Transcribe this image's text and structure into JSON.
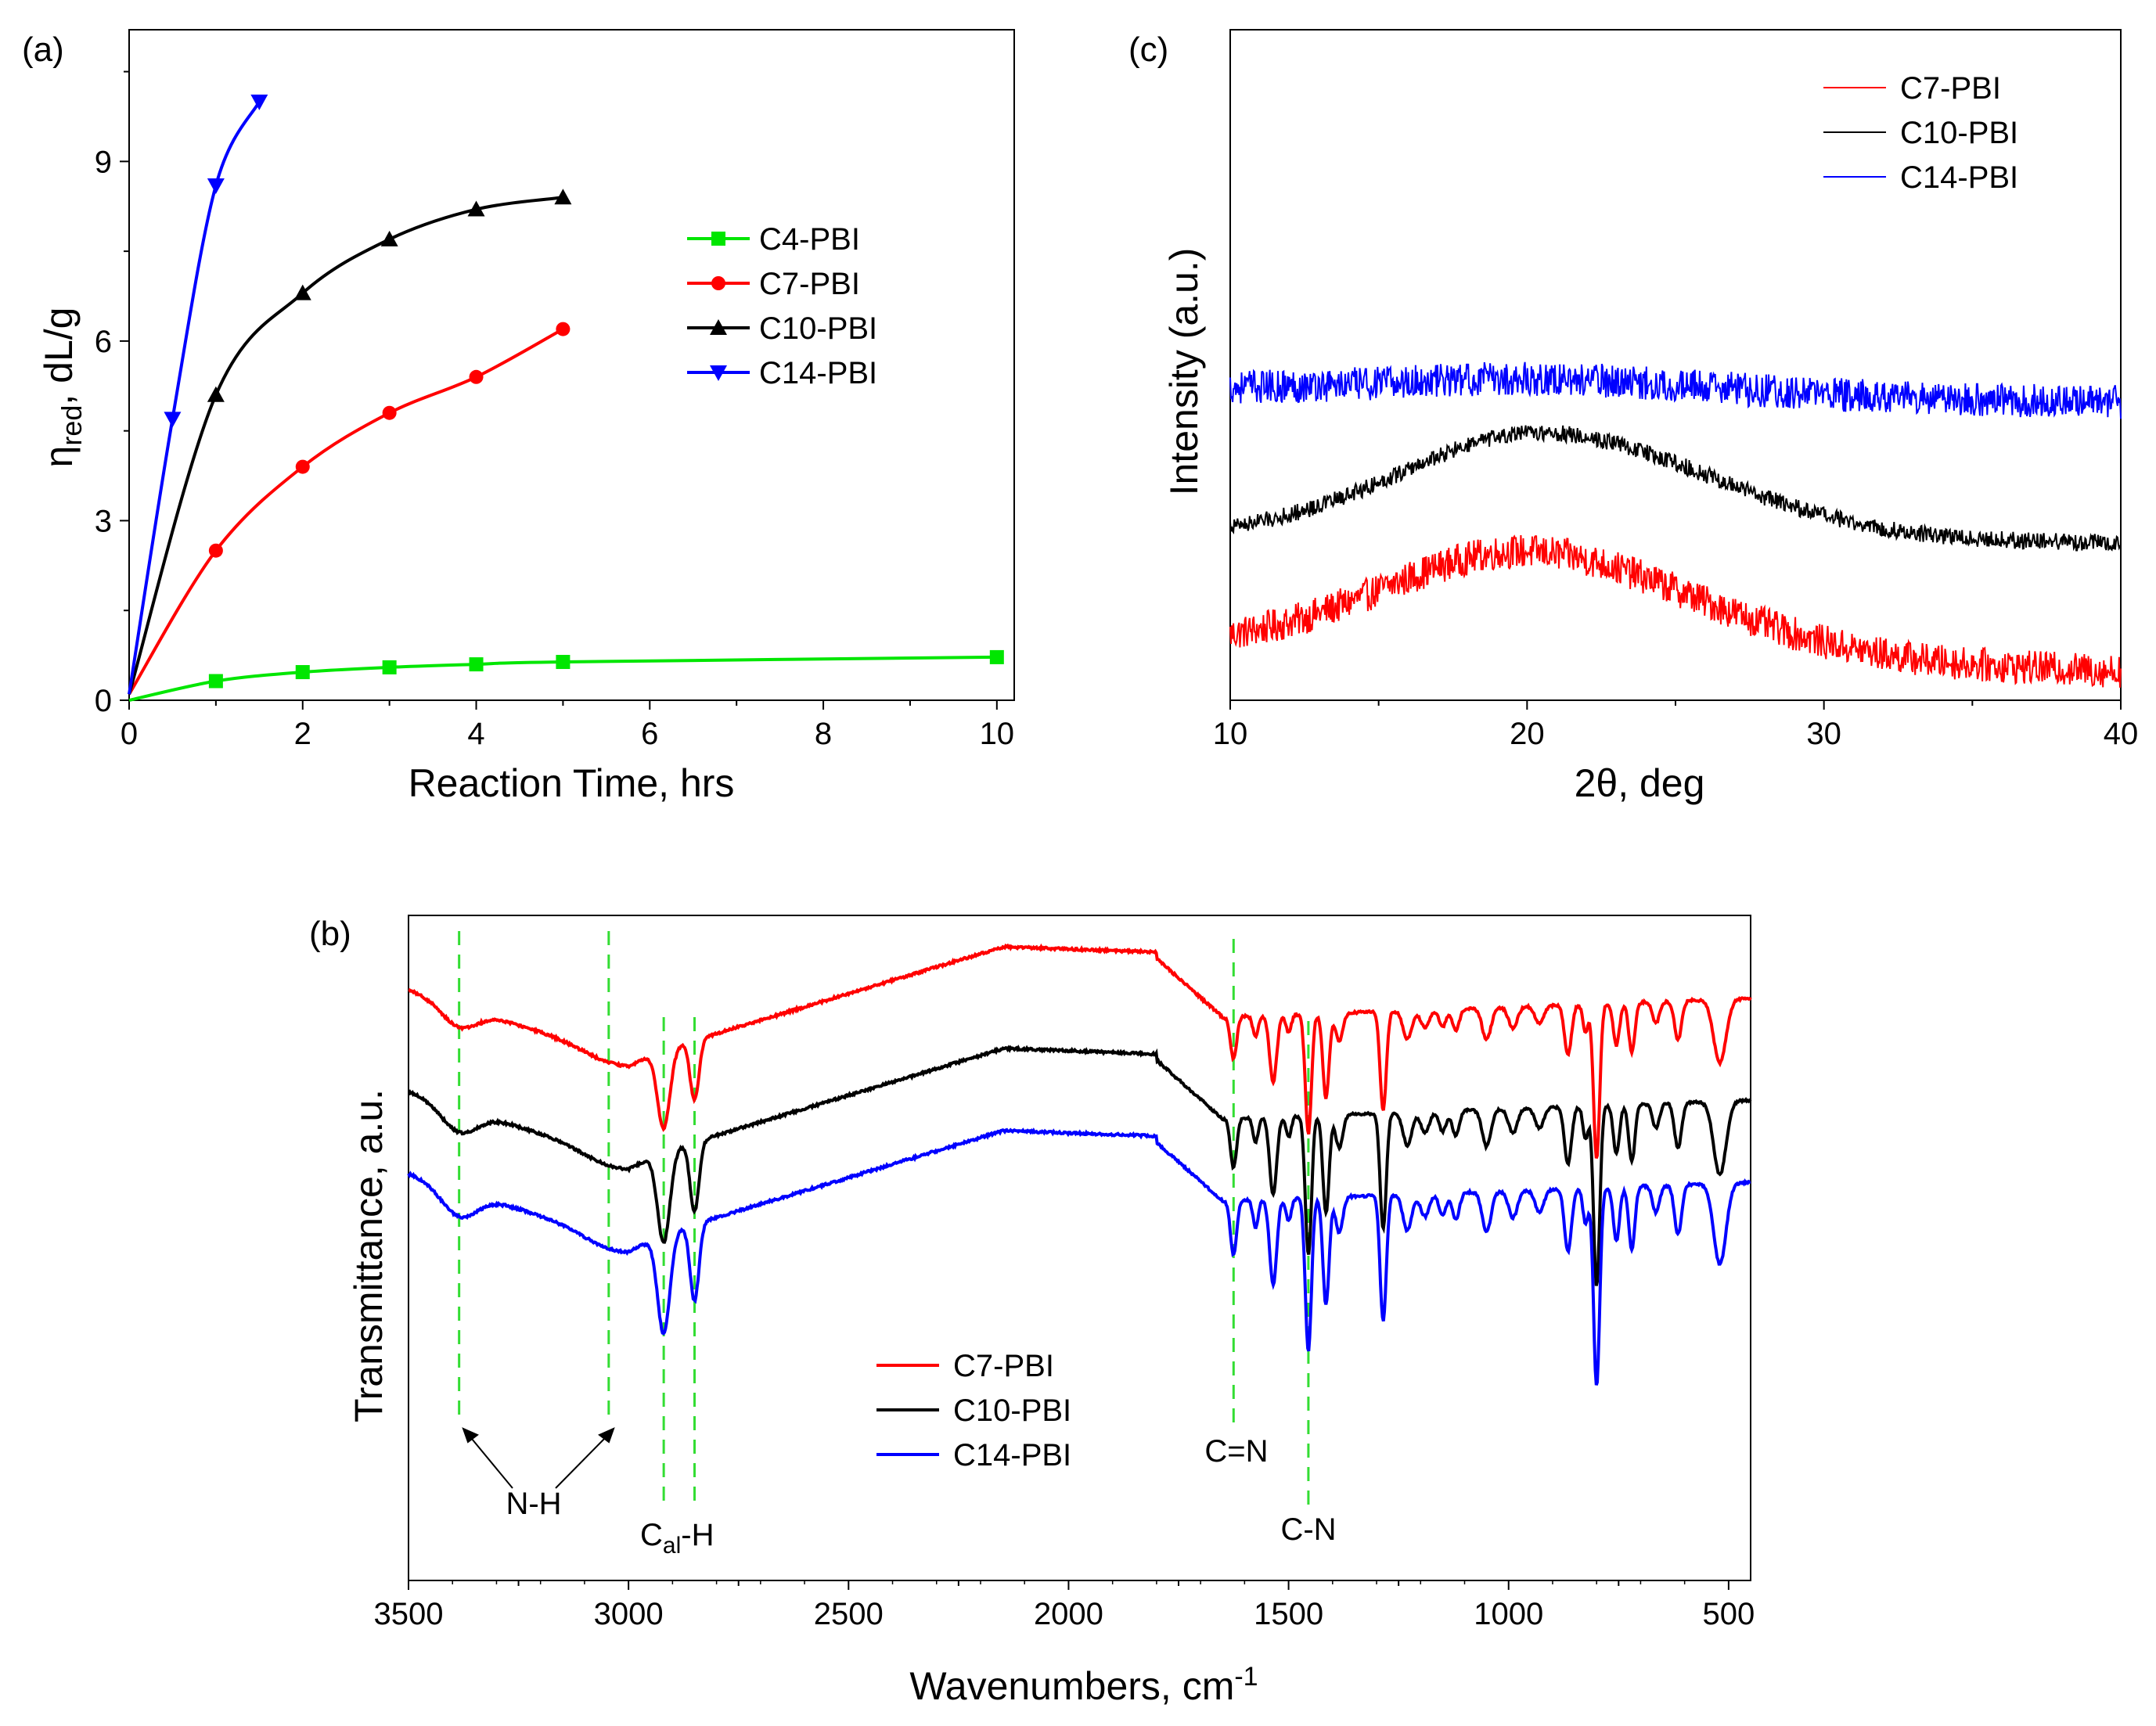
{
  "panels": {
    "a": {
      "label": "(a)",
      "chart_data": {
        "type": "line",
        "title": "",
        "xlabel": "Reaction Time, hrs",
        "ylabel": {
          "main": "η",
          "sub": "red",
          "rest": ", dL/g"
        },
        "xlim": [
          0,
          10.2
        ],
        "ylim": [
          0,
          11.2
        ],
        "xticks": [
          0,
          2,
          4,
          6,
          8,
          10
        ],
        "yticks": [
          0,
          3,
          6,
          9
        ],
        "legend_position": "center-right",
        "series": [
          {
            "name": "C4-PBI",
            "color": "#00e600",
            "marker": "square",
            "x": [
              0,
              1,
              2,
              3,
              4,
              5,
              10
            ],
            "y": [
              0,
              0.32,
              0.47,
              0.55,
              0.6,
              0.64,
              0.72
            ]
          },
          {
            "name": "C7-PBI",
            "color": "#ff0000",
            "marker": "circle",
            "x": [
              0,
              1,
              2,
              3,
              4,
              5
            ],
            "y": [
              0.1,
              2.5,
              3.9,
              4.8,
              5.4,
              6.2
            ]
          },
          {
            "name": "C10-PBI",
            "color": "#000000",
            "marker": "triangle-up",
            "x": [
              0,
              1,
              2,
              3,
              4,
              5
            ],
            "y": [
              0.1,
              5.1,
              6.8,
              7.7,
              8.2,
              8.4
            ]
          },
          {
            "name": "C14-PBI",
            "color": "#0000ff",
            "marker": "triangle-down",
            "x": [
              0,
              0.5,
              1,
              1.5
            ],
            "y": [
              0.1,
              4.7,
              8.6,
              10.0
            ]
          }
        ]
      }
    },
    "c": {
      "label": "(c)",
      "chart_data": {
        "type": "line",
        "title": "",
        "xlabel": "2θ, deg",
        "ylabel": "Intensity (a.u.)",
        "xlim": [
          10,
          40
        ],
        "xticks": [
          10,
          20,
          30,
          40
        ],
        "y_ticklabels": false,
        "legend_position": "top-right",
        "series": [
          {
            "name": "C7-PBI",
            "color": "#ff0000",
            "peak_x": 20,
            "base_left": 0.22,
            "base_right": 0.04,
            "peak_height": 0.95,
            "noise": 0.12
          },
          {
            "name": "C10-PBI",
            "color": "#000000",
            "peak_x": 20.5,
            "base_left": 1.0,
            "base_right": 0.95,
            "peak_height": 1.75,
            "noise": 0.06
          },
          {
            "name": "C14-PBI",
            "color": "#0000ff",
            "peak_x": 20.5,
            "base_left": 2.05,
            "base_right": 1.95,
            "peak_height": 2.15,
            "noise": 0.12
          }
        ]
      }
    },
    "b": {
      "label": "(b)",
      "chart_data": {
        "type": "line",
        "title": "",
        "xlabel": {
          "main": "Wavenumbers, cm",
          "sup": "-1"
        },
        "ylabel": "Transmittance, a.u.",
        "xlim": [
          3500,
          450
        ],
        "xticks": [
          3500,
          3000,
          2500,
          2000,
          1500,
          1000,
          500
        ],
        "y_ticklabels": false,
        "legend_position": "bottom-center",
        "series": [
          {
            "name": "C7-PBI",
            "color": "#ff0000"
          },
          {
            "name": "C10-PBI",
            "color": "#000000"
          },
          {
            "name": "C14-PBI",
            "color": "#0000ff"
          }
        ],
        "marker_lines": [
          3385,
          3045,
          2920,
          2850,
          1625,
          1455
        ],
        "annotations": [
          {
            "text": "N-H"
          },
          {
            "text": "C",
            "sub": "al",
            "rest": "-H"
          },
          {
            "text": "C=N"
          },
          {
            "text": "C-N"
          }
        ]
      }
    }
  }
}
